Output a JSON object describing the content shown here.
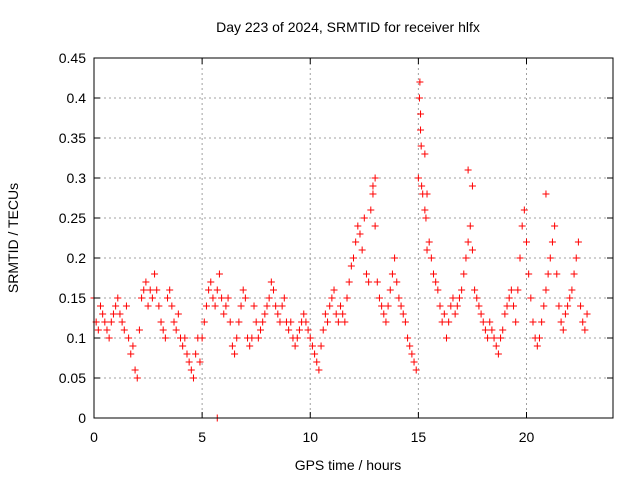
{
  "chart_data": {
    "type": "scatter",
    "title": "Day 223 of 2024, SRMTID for receiver hlfx",
    "xlabel": "GPS time / hours",
    "ylabel": "SRMTID / TECUs",
    "xlim": [
      0,
      24
    ],
    "ylim": [
      0,
      0.45
    ],
    "xticks": [
      0,
      5,
      10,
      15,
      20
    ],
    "xtick_labels": [
      "0",
      "5",
      "10",
      "15",
      "20"
    ],
    "yticks": [
      0,
      0.05,
      0.1,
      0.15,
      0.2,
      0.25,
      0.3,
      0.35,
      0.4,
      0.45
    ],
    "ytick_labels": [
      "0",
      "0.05",
      "0.1",
      "0.15",
      "0.2",
      "0.25",
      "0.3",
      "0.35",
      "0.4",
      "0.45"
    ],
    "grid": true,
    "marker": "plus",
    "series_color": "#ff0000",
    "series": [
      {
        "name": "SRMTID",
        "x": [
          0.0,
          0.1,
          0.2,
          0.3,
          0.4,
          0.5,
          0.6,
          0.7,
          0.8,
          0.9,
          1.0,
          1.1,
          1.2,
          1.3,
          1.4,
          1.5,
          1.6,
          1.7,
          1.8,
          1.9,
          2.0,
          2.1,
          2.2,
          2.3,
          2.4,
          2.5,
          2.6,
          2.7,
          2.8,
          2.9,
          3.0,
          3.1,
          3.2,
          3.3,
          3.4,
          3.5,
          3.6,
          3.7,
          3.8,
          3.9,
          4.0,
          4.1,
          4.2,
          4.3,
          4.4,
          4.5,
          4.6,
          4.7,
          4.8,
          4.9,
          5.0,
          5.1,
          5.2,
          5.3,
          5.4,
          5.5,
          5.6,
          5.7,
          5.8,
          5.9,
          6.0,
          6.1,
          6.2,
          6.3,
          6.4,
          6.5,
          6.6,
          6.7,
          6.8,
          6.9,
          7.0,
          7.1,
          7.2,
          7.3,
          7.4,
          7.5,
          7.6,
          7.7,
          7.8,
          7.9,
          8.0,
          8.1,
          8.2,
          8.3,
          8.4,
          8.5,
          8.6,
          8.7,
          8.8,
          8.9,
          9.0,
          9.1,
          9.2,
          9.3,
          9.4,
          9.5,
          9.6,
          9.7,
          9.8,
          9.9,
          10.0,
          10.1,
          10.2,
          10.3,
          10.4,
          10.5,
          10.6,
          10.7,
          10.8,
          10.9,
          11.0,
          11.1,
          11.2,
          11.3,
          11.4,
          11.5,
          11.6,
          11.7,
          11.8,
          11.9,
          12.0,
          12.1,
          12.2,
          12.3,
          12.4,
          12.5,
          12.6,
          12.7,
          12.8,
          12.9,
          13.0,
          13.1,
          13.2,
          13.3,
          13.4,
          13.5,
          13.6,
          13.7,
          13.8,
          13.9,
          14.0,
          14.1,
          14.2,
          14.3,
          14.4,
          14.5,
          14.6,
          14.7,
          14.8,
          14.9,
          15.0,
          15.1,
          15.2,
          15.3,
          15.4,
          15.5,
          15.6,
          15.7,
          15.8,
          15.9,
          16.0,
          16.1,
          16.2,
          16.3,
          16.4,
          16.5,
          16.6,
          16.7,
          16.8,
          16.9,
          17.0,
          17.1,
          17.2,
          17.3,
          17.4,
          17.5,
          17.6,
          17.7,
          17.8,
          17.9,
          18.0,
          18.1,
          18.2,
          18.3,
          18.4,
          18.5,
          18.6,
          18.7,
          18.8,
          18.9,
          19.0,
          19.1,
          19.2,
          19.3,
          19.4,
          19.5,
          19.6,
          19.7,
          19.8,
          19.9,
          20.0,
          20.1,
          20.2,
          20.3,
          20.4,
          20.5,
          20.6,
          20.7,
          20.8,
          20.9,
          21.0,
          21.1,
          21.2,
          21.3,
          21.4,
          21.5,
          21.6,
          21.7,
          21.8,
          21.9,
          22.0,
          22.1,
          22.2,
          22.3,
          22.4,
          22.5,
          22.6,
          22.7,
          22.8,
          15.05,
          15.07,
          15.1,
          15.13,
          15.15,
          15.3,
          15.35,
          15.4,
          12.9,
          13.0,
          17.3,
          17.5,
          20.9,
          5.7
        ],
        "y": [
          0.15,
          0.12,
          0.11,
          0.14,
          0.13,
          0.12,
          0.11,
          0.1,
          0.12,
          0.13,
          0.14,
          0.15,
          0.13,
          0.12,
          0.11,
          0.14,
          0.1,
          0.08,
          0.09,
          0.06,
          0.05,
          0.11,
          0.15,
          0.16,
          0.17,
          0.14,
          0.16,
          0.15,
          0.18,
          0.16,
          0.14,
          0.12,
          0.11,
          0.1,
          0.15,
          0.16,
          0.14,
          0.12,
          0.11,
          0.13,
          0.1,
          0.09,
          0.1,
          0.08,
          0.07,
          0.06,
          0.05,
          0.08,
          0.1,
          0.07,
          0.1,
          0.12,
          0.14,
          0.16,
          0.17,
          0.15,
          0.14,
          0.16,
          0.18,
          0.15,
          0.13,
          0.14,
          0.15,
          0.12,
          0.09,
          0.08,
          0.1,
          0.12,
          0.14,
          0.16,
          0.15,
          0.1,
          0.09,
          0.1,
          0.14,
          0.12,
          0.1,
          0.11,
          0.12,
          0.13,
          0.14,
          0.15,
          0.17,
          0.16,
          0.14,
          0.13,
          0.12,
          0.14,
          0.15,
          0.12,
          0.11,
          0.12,
          0.1,
          0.09,
          0.1,
          0.11,
          0.12,
          0.13,
          0.12,
          0.11,
          0.1,
          0.09,
          0.08,
          0.07,
          0.06,
          0.09,
          0.11,
          0.13,
          0.12,
          0.14,
          0.15,
          0.16,
          0.13,
          0.12,
          0.14,
          0.13,
          0.12,
          0.15,
          0.17,
          0.19,
          0.2,
          0.22,
          0.24,
          0.23,
          0.21,
          0.25,
          0.18,
          0.17,
          0.26,
          0.28,
          0.24,
          0.17,
          0.15,
          0.14,
          0.13,
          0.12,
          0.14,
          0.16,
          0.18,
          0.2,
          0.17,
          0.15,
          0.14,
          0.13,
          0.12,
          0.1,
          0.09,
          0.08,
          0.07,
          0.06,
          0.3,
          0.36,
          0.28,
          0.33,
          0.28,
          0.22,
          0.2,
          0.18,
          0.17,
          0.16,
          0.14,
          0.12,
          0.13,
          0.1,
          0.12,
          0.14,
          0.15,
          0.13,
          0.14,
          0.15,
          0.16,
          0.18,
          0.2,
          0.22,
          0.24,
          0.21,
          0.16,
          0.15,
          0.14,
          0.13,
          0.12,
          0.11,
          0.1,
          0.12,
          0.11,
          0.1,
          0.09,
          0.08,
          0.1,
          0.11,
          0.13,
          0.14,
          0.15,
          0.16,
          0.14,
          0.12,
          0.16,
          0.2,
          0.24,
          0.26,
          0.22,
          0.18,
          0.15,
          0.12,
          0.1,
          0.09,
          0.1,
          0.12,
          0.14,
          0.16,
          0.18,
          0.2,
          0.22,
          0.24,
          0.18,
          0.14,
          0.12,
          0.11,
          0.13,
          0.14,
          0.15,
          0.16,
          0.18,
          0.2,
          0.22,
          0.14,
          0.12,
          0.11,
          0.13,
          0.4,
          0.42,
          0.38,
          0.34,
          0.29,
          0.26,
          0.25,
          0.21,
          0.29,
          0.3,
          0.31,
          0.29,
          0.28,
          0.0
        ]
      }
    ]
  }
}
